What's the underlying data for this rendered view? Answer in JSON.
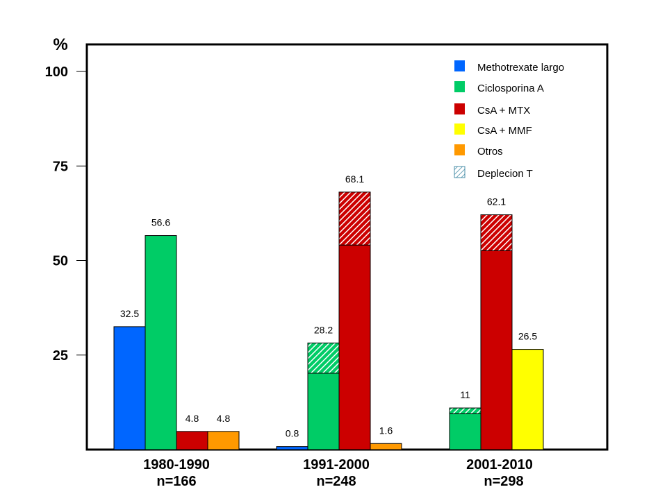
{
  "chart_data": {
    "type": "bar",
    "y_unit": "%",
    "ylim": [
      0,
      100
    ],
    "yticks": [
      25,
      50,
      75,
      100
    ],
    "grid": false,
    "legend_position": "top-right",
    "legend": [
      {
        "label": "Methotrexate largo",
        "color": "#0066ff",
        "pattern": "solid"
      },
      {
        "label": "Ciclosporina A",
        "color": "#00cc66",
        "pattern": "solid"
      },
      {
        "label": "CsA + MTX",
        "color": "#cc0000",
        "pattern": "solid"
      },
      {
        "label": "CsA + MMF",
        "color": "#ffff00",
        "pattern": "solid"
      },
      {
        "label": "Otros",
        "color": "#ff9900",
        "pattern": "solid"
      },
      {
        "label": "Deplecion T",
        "color": "#ffffff",
        "pattern": "hatched"
      }
    ],
    "groups": [
      {
        "period": "1980-1990",
        "n": "n=166",
        "bars": [
          {
            "series": "Methotrexate largo",
            "color": "#0066ff",
            "value": 32.5,
            "label": "32.5"
          },
          {
            "series": "Ciclosporina A",
            "color": "#00cc66",
            "value": 56.6,
            "label": "56.6"
          },
          {
            "series": "CsA + MTX",
            "color": "#cc0000",
            "value": 4.8,
            "label": "4.8"
          },
          {
            "series": "Otros",
            "color": "#ff9900",
            "value": 4.8,
            "label": "4.8"
          }
        ]
      },
      {
        "period": "1991-2000",
        "n": "n=248",
        "bars": [
          {
            "series": "Methotrexate largo",
            "color": "#0066ff",
            "value": 0.8,
            "label": "0.8"
          },
          {
            "series": "Ciclosporina A",
            "color": "#00cc66",
            "value": 28.2,
            "label": "28.2",
            "tdepleted_portion": 8
          },
          {
            "series": "CsA + MTX",
            "color": "#cc0000",
            "value": 68.1,
            "label": "68.1",
            "tdepleted_portion": 14
          },
          {
            "series": "Otros",
            "color": "#ff9900",
            "value": 1.6,
            "label": "1.6"
          }
        ]
      },
      {
        "period": "2001-2010",
        "n": "n=298",
        "bars": [
          {
            "series": "Ciclosporina A",
            "color": "#00cc66",
            "value": 11,
            "label": "11",
            "tdepleted_portion": 1.5
          },
          {
            "series": "CsA + MTX",
            "color": "#cc0000",
            "value": 62.1,
            "label": "62.1",
            "tdepleted_portion": 9.5
          },
          {
            "series": "CsA + MMF",
            "color": "#ffff00",
            "value": 26.5,
            "label": "26.5"
          }
        ]
      }
    ]
  }
}
